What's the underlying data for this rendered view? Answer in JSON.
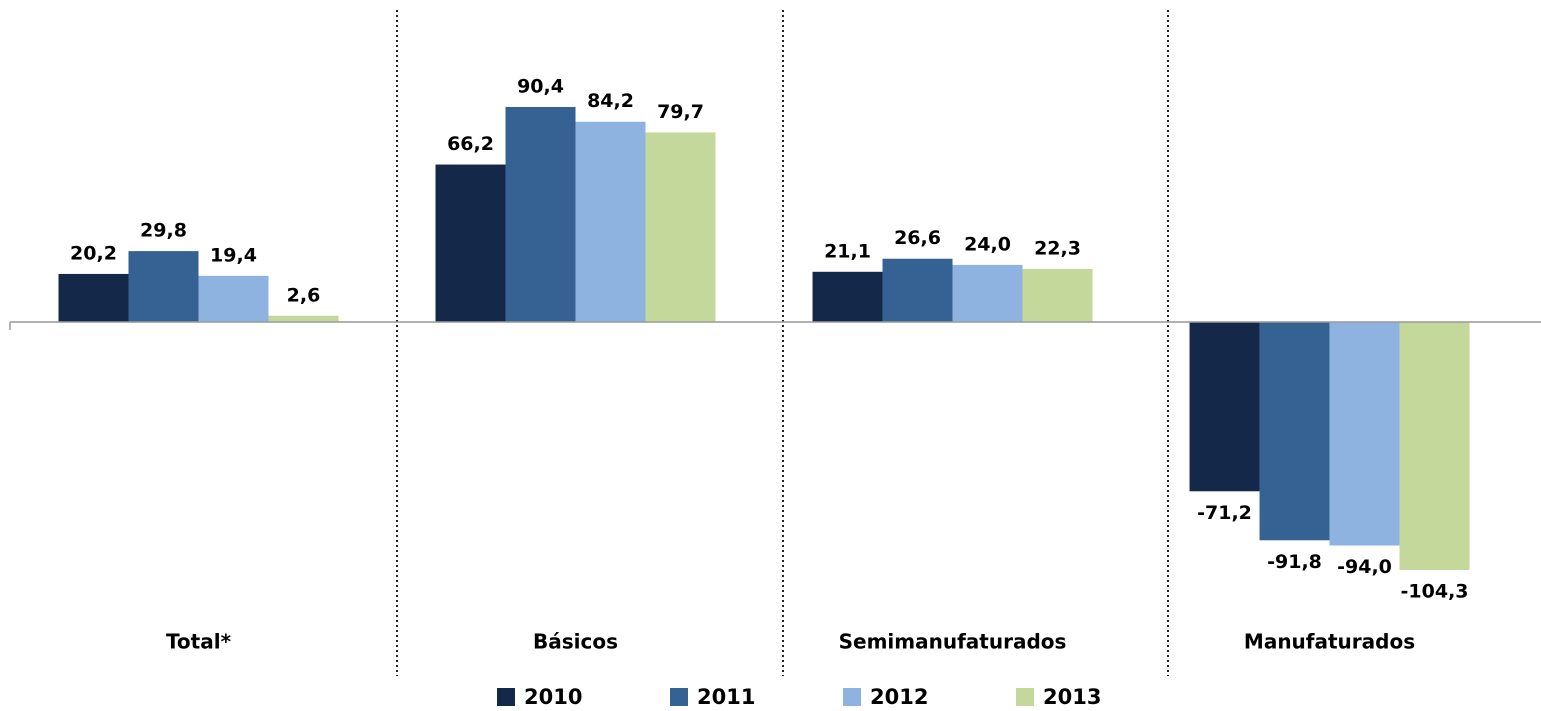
{
  "chart_data": {
    "type": "bar",
    "categories": [
      "Total*",
      "Básicos",
      "Semimanufaturados",
      "Manufaturados"
    ],
    "series": [
      {
        "name": "2010",
        "color": "#14294a",
        "values": [
          20.2,
          66.2,
          21.1,
          -71.2
        ],
        "value_labels": [
          "20,2",
          "66,2",
          "21,1",
          "-71,2"
        ]
      },
      {
        "name": "2011",
        "color": "#366193",
        "values": [
          29.8,
          90.4,
          26.6,
          -91.8
        ],
        "value_labels": [
          "29,8",
          "90,4",
          "26,6",
          "-91,8"
        ]
      },
      {
        "name": "2012",
        "color": "#8fb3e0",
        "values": [
          19.4,
          84.2,
          24.0,
          -94.0
        ],
        "value_labels": [
          "19,4",
          "84,2",
          "24,0",
          "-94,0"
        ]
      },
      {
        "name": "2013",
        "color": "#c4d89b",
        "values": [
          2.6,
          79.7,
          22.3,
          -104.3
        ],
        "value_labels": [
          "2,6",
          "79,7",
          "22,3",
          "-104,3"
        ]
      }
    ]
  }
}
